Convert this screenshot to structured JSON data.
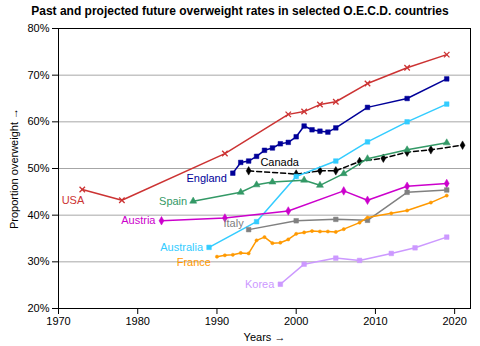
{
  "chart_data": {
    "type": "line",
    "title": "Past and projected future overweight rates in selected O.E.C.D. countries",
    "xlabel": "Years",
    "ylabel": "Proportion overweight",
    "xlim": [
      1970,
      2022
    ],
    "xticks": [
      1970,
      1980,
      1990,
      2000,
      2010,
      2020
    ],
    "ylim": [
      20,
      80
    ],
    "yticks": [
      {
        "value": 20,
        "label": "20%"
      },
      {
        "value": 30,
        "label": "30%"
      },
      {
        "value": 40,
        "label": "40%"
      },
      {
        "value": 50,
        "label": "50%"
      },
      {
        "value": 60,
        "label": "60%"
      },
      {
        "value": 70,
        "label": "70%"
      },
      {
        "value": 80,
        "label": "80%"
      }
    ],
    "grid": "y",
    "series": [
      {
        "name": "USA",
        "color": "#cc3333",
        "marker": "times",
        "line_style": "solid",
        "x": [
          1973,
          1978,
          1991,
          1999,
          2001,
          2003,
          2005,
          2009,
          2014,
          2019
        ],
        "values": [
          45.5,
          43.2,
          53.2,
          61.6,
          62.2,
          63.7,
          64.3,
          68.2,
          71.6,
          74.4
        ]
      },
      {
        "name": "England",
        "color": "#000099",
        "marker": "square",
        "line_style": "solid",
        "x": [
          1992,
          1993,
          1994,
          1995,
          1996,
          1997,
          1998,
          1999,
          2000,
          2001,
          2002,
          2003,
          2004,
          2005,
          2009,
          2014,
          2019
        ],
        "values": [
          49.0,
          51.3,
          51.6,
          52.6,
          53.9,
          54.4,
          55.3,
          55.6,
          56.8,
          59.1,
          58.3,
          58.0,
          57.8,
          58.7,
          63.1,
          65.0,
          69.2
        ]
      },
      {
        "name": "Canada",
        "color": "#000000",
        "marker": "diamond",
        "line_style": "dashed",
        "x": [
          1994,
          2000,
          2003,
          2005,
          2008,
          2011,
          2014,
          2017,
          2021
        ],
        "values": [
          49.5,
          48.8,
          49.5,
          49.5,
          51.5,
          52.2,
          53.5,
          54.0,
          55.0
        ]
      },
      {
        "name": "Australia",
        "color": "#33ccff",
        "marker": "square",
        "line_style": "solid",
        "x": [
          1989,
          1995,
          2000,
          2005,
          2009,
          2014,
          2019
        ],
        "values": [
          33.1,
          38.6,
          48.3,
          51.6,
          55.7,
          60.0,
          63.8
        ]
      },
      {
        "name": "Spain",
        "color": "#339966",
        "marker": "triangle",
        "line_style": "solid",
        "x": [
          1987,
          1993,
          1995,
          1997,
          2001,
          2003,
          2006,
          2009,
          2014,
          2019
        ],
        "values": [
          43.0,
          44.9,
          46.5,
          47.1,
          47.5,
          46.4,
          48.9,
          52.1,
          54.0,
          55.5
        ]
      },
      {
        "name": "Austria",
        "color": "#cc00cc",
        "marker": "diamond",
        "line_style": "solid",
        "x": [
          1983,
          1991,
          1999,
          2006,
          2009,
          2014,
          2019
        ],
        "values": [
          38.8,
          39.4,
          40.9,
          45.2,
          43.2,
          46.2,
          46.8
        ]
      },
      {
        "name": "Italy",
        "color": "#808080",
        "marker": "square",
        "line_style": "solid",
        "x": [
          1994,
          2000,
          2005,
          2009,
          2014,
          2019
        ],
        "values": [
          36.9,
          38.8,
          39.1,
          38.9,
          44.9,
          45.4
        ]
      },
      {
        "name": "France",
        "color": "#ff9900",
        "marker": "circle",
        "line_style": "solid",
        "x": [
          1990,
          1991,
          1992,
          1993,
          1994,
          1995,
          1996,
          1997,
          1998,
          1999,
          2000,
          2001,
          2002,
          2003,
          2004,
          2005,
          2006,
          2008,
          2009,
          2012,
          2014,
          2017,
          2019
        ],
        "values": [
          31.1,
          31.4,
          31.5,
          31.9,
          31.8,
          34.6,
          35.3,
          34.0,
          34.1,
          34.8,
          36.0,
          36.3,
          36.6,
          36.5,
          36.5,
          36.4,
          37.0,
          38.4,
          39.5,
          40.4,
          41.0,
          42.7,
          44.2
        ]
      },
      {
        "name": "Korea",
        "color": "#cc99ff",
        "marker": "square",
        "line_style": "solid",
        "x": [
          1998,
          2001,
          2005,
          2008,
          2012,
          2015,
          2019
        ],
        "values": [
          25.2,
          29.5,
          30.8,
          30.3,
          31.8,
          33.0,
          35.3
        ]
      }
    ]
  }
}
